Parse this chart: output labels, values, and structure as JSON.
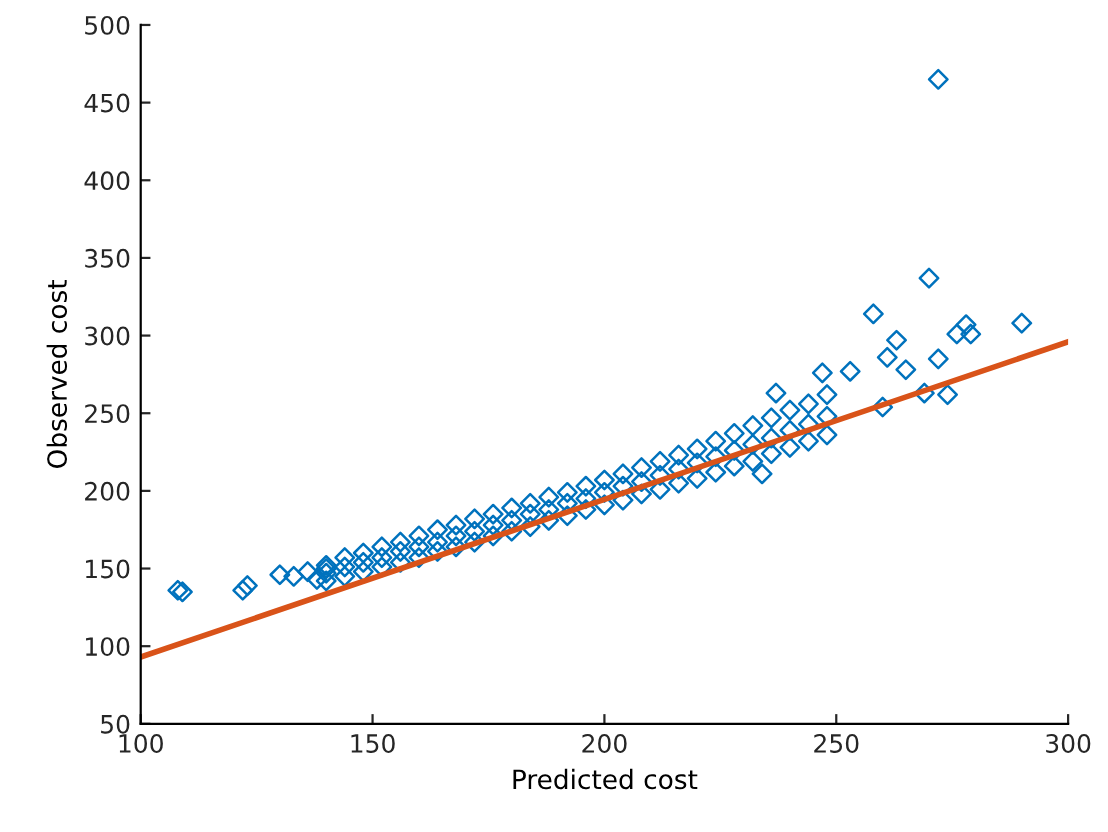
{
  "chart_data": {
    "type": "scatter",
    "xlabel": "Predicted cost",
    "ylabel": "Observed cost",
    "xlim": [
      100,
      300
    ],
    "ylim": [
      50,
      500
    ],
    "xticks": [
      100,
      150,
      200,
      250,
      300
    ],
    "yticks": [
      50,
      100,
      150,
      200,
      250,
      300,
      350,
      400,
      450,
      500
    ],
    "grid": false,
    "series": [
      {
        "marker": "diamond",
        "color": "#0072bd",
        "x": [
          108,
          109,
          122,
          123,
          130,
          133,
          136,
          138,
          140,
          140,
          140,
          140,
          144,
          144,
          144,
          148,
          148,
          148,
          152,
          152,
          152,
          156,
          156,
          156,
          160,
          160,
          160,
          164,
          164,
          164,
          168,
          168,
          168,
          172,
          172,
          172,
          176,
          176,
          176,
          180,
          180,
          180,
          184,
          184,
          184,
          188,
          188,
          188,
          192,
          192,
          192,
          196,
          196,
          196,
          200,
          200,
          200,
          204,
          204,
          204,
          208,
          208,
          208,
          212,
          212,
          212,
          216,
          216,
          216,
          220,
          220,
          220,
          224,
          224,
          224,
          228,
          228,
          228,
          232,
          232,
          232,
          236,
          236,
          236,
          240,
          240,
          240,
          244,
          244,
          244,
          248,
          248,
          248,
          272,
          270,
          258,
          290,
          278,
          279,
          276,
          263,
          261,
          265,
          272,
          274,
          269,
          247,
          253,
          237,
          234,
          260
        ],
        "values": [
          136,
          135,
          136,
          139,
          146,
          145,
          148,
          143,
          150,
          142,
          147,
          152,
          145,
          151,
          157,
          148,
          154,
          160,
          151,
          157,
          164,
          154,
          161,
          167,
          157,
          164,
          171,
          161,
          167,
          175,
          164,
          171,
          178,
          167,
          174,
          182,
          171,
          178,
          185,
          174,
          181,
          189,
          177,
          185,
          192,
          181,
          188,
          196,
          184,
          192,
          199,
          188,
          195,
          203,
          191,
          199,
          207,
          194,
          203,
          211,
          198,
          206,
          215,
          201,
          210,
          219,
          205,
          214,
          223,
          208,
          218,
          227,
          212,
          222,
          232,
          216,
          226,
          237,
          219,
          230,
          242,
          224,
          234,
          247,
          228,
          239,
          252,
          232,
          243,
          256,
          236,
          248,
          262,
          465,
          337,
          314,
          308,
          307,
          301,
          301,
          297,
          286,
          278,
          285,
          262,
          263,
          276,
          277,
          263,
          211,
          254
        ]
      },
      {
        "type": "line",
        "color": "#d95319",
        "x": [
          100,
          300
        ],
        "values": [
          93,
          296
        ]
      }
    ]
  }
}
